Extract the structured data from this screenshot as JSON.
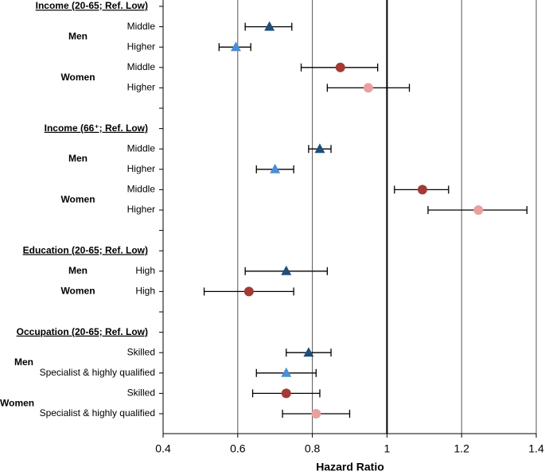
{
  "chart_data": {
    "type": "forest",
    "xlabel": "Hazard Ratio",
    "xlim": [
      0.4,
      1.4
    ],
    "xticks": [
      0.4,
      0.6,
      0.8,
      1,
      1.2,
      1.4
    ],
    "reference": 1,
    "grid": true,
    "groups": [
      {
        "title": "Income (20-65; Ref. Low)",
        "subgroups": [
          {
            "name": "Men",
            "rows": [
              {
                "label": "Middle",
                "estimate": 0.685,
                "lower": 0.62,
                "upper": 0.745,
                "marker": "triangle",
                "color": "#1f4e79"
              },
              {
                "label": "Higher",
                "estimate": 0.595,
                "lower": 0.55,
                "upper": 0.635,
                "marker": "triangle",
                "color": "#4a8fd4"
              }
            ]
          },
          {
            "name": "Women",
            "rows": [
              {
                "label": "Middle",
                "estimate": 0.875,
                "lower": 0.77,
                "upper": 0.975,
                "marker": "circle",
                "color": "#a33a36"
              },
              {
                "label": "Higher",
                "estimate": 0.95,
                "lower": 0.84,
                "upper": 1.06,
                "marker": "circle",
                "color": "#e8a0a0"
              }
            ]
          }
        ]
      },
      {
        "title": "Income (66⁺; Ref. Low)",
        "subgroups": [
          {
            "name": "Men",
            "rows": [
              {
                "label": "Middle",
                "estimate": 0.82,
                "lower": 0.79,
                "upper": 0.85,
                "marker": "triangle",
                "color": "#1f4e79"
              },
              {
                "label": "Higher",
                "estimate": 0.7,
                "lower": 0.65,
                "upper": 0.75,
                "marker": "triangle",
                "color": "#4a8fd4"
              }
            ]
          },
          {
            "name": "Women",
            "rows": [
              {
                "label": "Middle",
                "estimate": 1.095,
                "lower": 1.02,
                "upper": 1.165,
                "marker": "circle",
                "color": "#a33a36"
              },
              {
                "label": "Higher",
                "estimate": 1.245,
                "lower": 1.11,
                "upper": 1.375,
                "marker": "circle",
                "color": "#e8a0a0"
              }
            ]
          }
        ]
      },
      {
        "title": "Education (20-65; Ref. Low)",
        "subgroups": [
          {
            "name": "Men",
            "rows": [
              {
                "label": "High",
                "estimate": 0.73,
                "lower": 0.62,
                "upper": 0.84,
                "marker": "triangle",
                "color": "#1f4e79"
              }
            ]
          },
          {
            "name": "Women",
            "rows": [
              {
                "label": "High",
                "estimate": 0.63,
                "lower": 0.51,
                "upper": 0.75,
                "marker": "circle",
                "color": "#a33a36"
              }
            ]
          }
        ]
      },
      {
        "title": "Occupation (20-65; Ref. Low)",
        "subgroups": [
          {
            "name": "Men",
            "rows": [
              {
                "label": "Skilled",
                "estimate": 0.79,
                "lower": 0.73,
                "upper": 0.85,
                "marker": "triangle",
                "color": "#1f4e79"
              },
              {
                "label": "Specialist & highly qualified",
                "estimate": 0.73,
                "lower": 0.65,
                "upper": 0.81,
                "marker": "triangle",
                "color": "#4a8fd4"
              }
            ]
          },
          {
            "name": "Women",
            "rows": [
              {
                "label": "Skilled",
                "estimate": 0.73,
                "lower": 0.64,
                "upper": 0.82,
                "marker": "circle",
                "color": "#a33a36"
              },
              {
                "label": "Specialist & highly qualified",
                "estimate": 0.81,
                "lower": 0.72,
                "upper": 0.9,
                "marker": "circle",
                "color": "#e8a0a0"
              }
            ]
          }
        ]
      }
    ]
  }
}
